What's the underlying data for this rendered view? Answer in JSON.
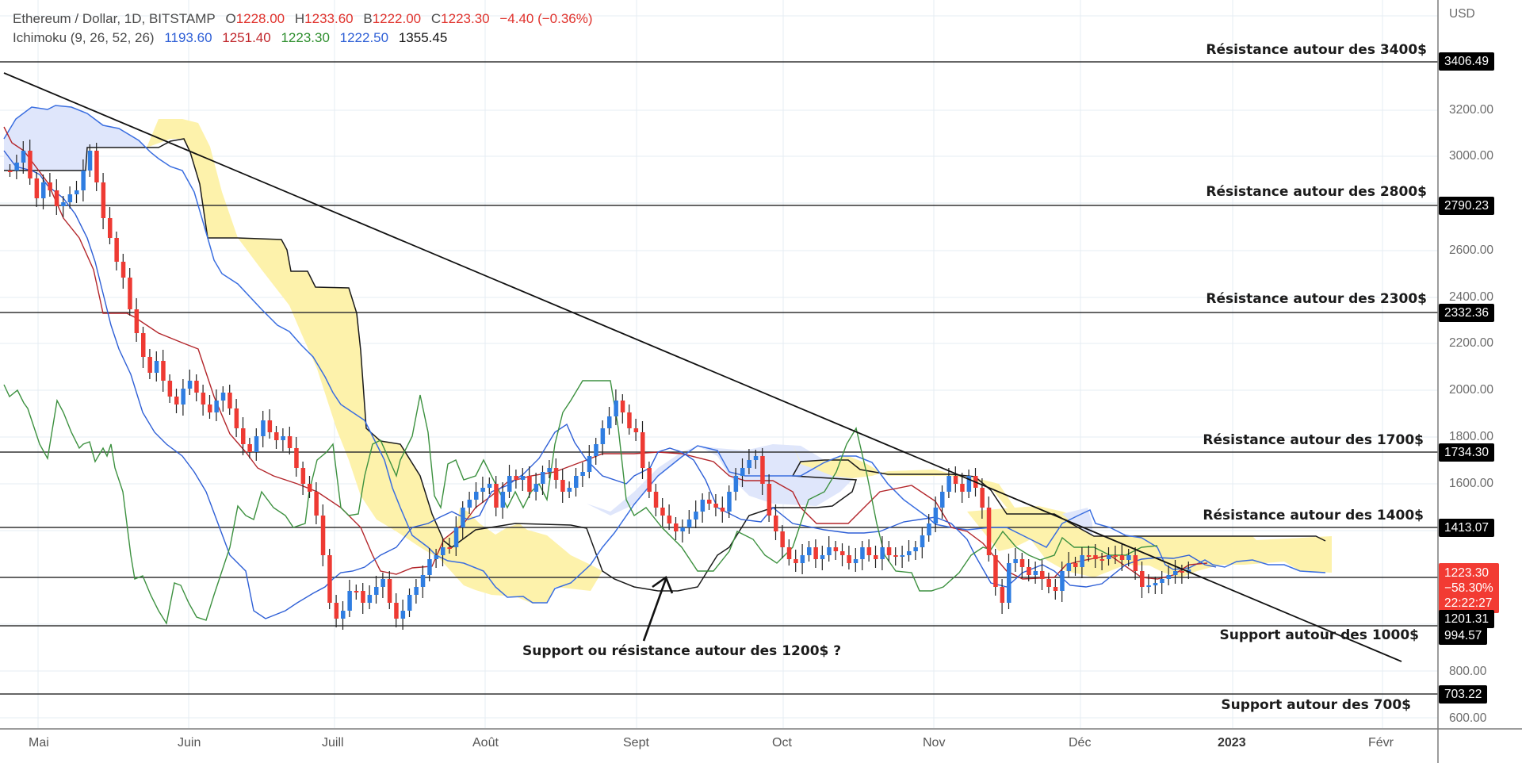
{
  "legend": {
    "symbol": "Ethereum / Dollar, 1D, BITSTAMP",
    "open_label": "O",
    "open": "1228.00",
    "high_label": "H",
    "high": "1233.60",
    "low_label": "B",
    "low": "1222.00",
    "close_label": "C",
    "close": "1223.30",
    "change": "−4.40 (−0.36%)",
    "indicator": "Ichimoku (9, 26, 52, 26)",
    "ichimoku_values": [
      "1193.60",
      "1251.40",
      "1223.30",
      "1222.50",
      "1355.45"
    ],
    "ichimoku_colors": [
      "#2e5fd6",
      "#c0262b",
      "#2f8f2f",
      "#2e5fd6",
      "#111111"
    ]
  },
  "price_axis": {
    "currency": "USD",
    "ticks": [
      "3200.00",
      "3000.00",
      "2600.00",
      "2400.00",
      "2200.00",
      "2000.00",
      "1800.00",
      "1600.00",
      "800.00",
      "600.00"
    ],
    "level_tags": [
      "3406.49",
      "2790.23",
      "2332.36",
      "1734.30",
      "1413.07",
      "1201.31",
      "994.57",
      "703.22"
    ],
    "current_price": "1223.30",
    "current_change": "−58.30%",
    "countdown": "22:22:27"
  },
  "time_axis": {
    "months": [
      "Mai",
      "Juin",
      "Juill",
      "Août",
      "Sept",
      "Oct",
      "Nov",
      "Déc",
      "2023",
      "Févr"
    ]
  },
  "annotations": {
    "r3400": "Résistance autour des 3400$",
    "r2800": "Résistance autour des 2800$",
    "r2300": "Résistance autour des 2300$",
    "r1700": "Résistance autour des 1700$",
    "r1400": "Résistance autour des 1400$",
    "s1000": "Support autour des 1000$",
    "s700": "Support autour des 700$",
    "q1200": "Support ou résistance autour des 1200$ ?"
  },
  "colors": {
    "up_candle": "#2f7de1",
    "down_candle": "#ee3a33",
    "tenkan": "#2e5fd6",
    "kijun": "#b3262b",
    "chikou": "#3d9140",
    "cloud_bull": "#fdf2ab",
    "cloud_bear": "#dfe6fb",
    "trendline": "#111111"
  },
  "chart_data": {
    "type": "candlestick",
    "title": "Ethereum / Dollar, 1D, BITSTAMP",
    "indicator": "Ichimoku (9, 26, 52, 26)",
    "xlabel": "",
    "ylabel": "USD",
    "x_ticks": [
      "Mai",
      "Juin",
      "Juill",
      "Août",
      "Sept",
      "Oct",
      "Nov",
      "Déc",
      "2023",
      "Févr"
    ],
    "ylim": [
      550,
      3550
    ],
    "grid": true,
    "last_bar": {
      "open": 1228.0,
      "high": 1233.6,
      "low": 1222.0,
      "close": 1223.3,
      "change": -4.4,
      "change_pct": -0.36
    },
    "ichimoku_last": {
      "tenkan": 1193.6,
      "kijun": 1251.4,
      "chikou": 1223.3,
      "senkou_a": 1222.5,
      "senkou_b": 1355.45
    },
    "horizontal_levels": [
      {
        "price": 3406.49,
        "label": "Résistance autour des 3400$"
      },
      {
        "price": 2790.23,
        "label": "Résistance autour des 2800$"
      },
      {
        "price": 2332.36,
        "label": "Résistance autour des 2300$"
      },
      {
        "price": 1734.3,
        "label": "Résistance autour des 1700$"
      },
      {
        "price": 1413.07,
        "label": "Résistance autour des 1400$"
      },
      {
        "price": 1201.31,
        "label": "Support ou résistance autour des 1200$ ?"
      },
      {
        "price": 994.57,
        "label": "Support autour des 1000$"
      },
      {
        "price": 703.22,
        "label": "Support autour des 700$"
      }
    ],
    "trendline": {
      "start": {
        "date": "late Apr 2022",
        "price": 3350
      },
      "end": {
        "date": "Jan 2023",
        "price": 850
      }
    },
    "approx_monthly_close": [
      {
        "month": "Mai",
        "close": 1940
      },
      {
        "month": "Juin",
        "close": 1070
      },
      {
        "month": "Juill",
        "close": 1680
      },
      {
        "month": "Août",
        "close": 1550
      },
      {
        "month": "Sept",
        "close": 1330
      },
      {
        "month": "Oct",
        "close": 1570
      },
      {
        "month": "Nov",
        "close": 1295
      },
      {
        "month": "Déc",
        "close": 1223
      }
    ]
  }
}
